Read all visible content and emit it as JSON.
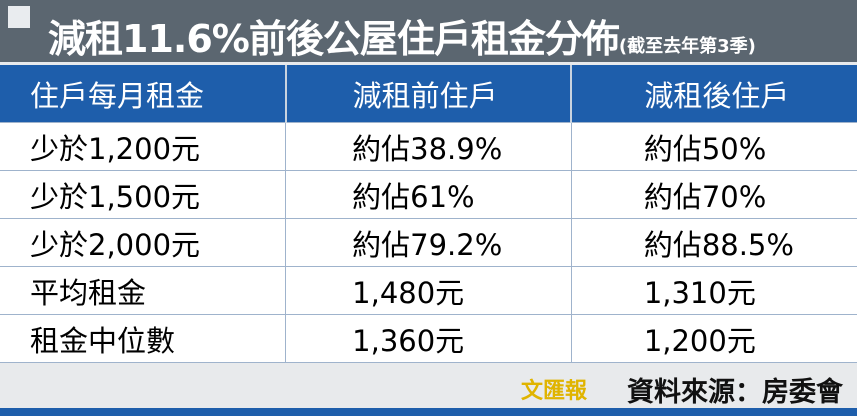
{
  "title": "減租11.6%前後公屋住戶租金分佈",
  "subtitle": "(截至去年第3季)",
  "table": {
    "headers": [
      "住戶每月租金",
      "減租前住戶",
      "減租後住戶"
    ],
    "rows": [
      [
        "少於1,200元",
        "約佔38.9%",
        "約佔50%"
      ],
      [
        "少於1,500元",
        "約佔61%",
        "約佔70%"
      ],
      [
        "少於2,000元",
        "約佔79.2%",
        "約佔88.5%"
      ],
      [
        "平均租金",
        "1,480元",
        "1,310元"
      ],
      [
        "租金中位數",
        "1,360元",
        "1,200元"
      ]
    ]
  },
  "footer": {
    "logo": "文匯報",
    "source": "資料來源：房委會"
  }
}
